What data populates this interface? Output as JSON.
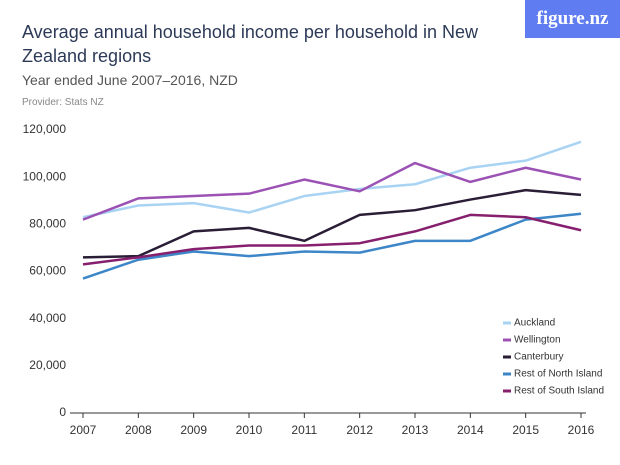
{
  "logo": "figure.nz",
  "chart_data": {
    "type": "line",
    "title": "Average annual household income per household in New Zealand regions",
    "subtitle": "Year ended June 2007–2016, NZD",
    "source": "Provider: Stats NZ",
    "categories": [
      "2007",
      "2008",
      "2009",
      "2010",
      "2011",
      "2012",
      "2013",
      "2014",
      "2015",
      "2016"
    ],
    "series": [
      {
        "name": "Auckland",
        "color": "#a9d3f3",
        "values": [
          83000,
          88000,
          89000,
          85000,
          92000,
          95000,
          97000,
          104000,
          107000,
          115000
        ]
      },
      {
        "name": "Wellington",
        "color": "#9b52b4",
        "values": [
          82000,
          91000,
          92000,
          93000,
          99000,
          94000,
          106000,
          98000,
          104000,
          99000
        ]
      },
      {
        "name": "Canterbury",
        "color": "#2a1d36",
        "values": [
          66000,
          66500,
          77000,
          78500,
          73000,
          84000,
          86000,
          90500,
          94500,
          92500
        ]
      },
      {
        "name": "Rest of North Island",
        "color": "#3d86c8",
        "values": [
          57000,
          65000,
          68500,
          66500,
          68500,
          68000,
          73000,
          73000,
          82000,
          84500
        ]
      },
      {
        "name": "Rest of South Island",
        "color": "#861f6e",
        "values": [
          63000,
          66000,
          69500,
          71000,
          71000,
          72000,
          77000,
          84000,
          83000,
          77500
        ]
      }
    ],
    "ylim": [
      0,
      120000
    ],
    "yticks": [
      0,
      {
        "value": 20000,
        "label": "20,000"
      },
      {
        "value": 40000,
        "label": "40,000"
      },
      {
        "value": 60000,
        "label": "60,000"
      },
      {
        "value": 80000,
        "label": "80,000"
      },
      {
        "value": 100000,
        "label": "100,000"
      },
      {
        "value": 120000,
        "label": "120,000"
      }
    ],
    "grid": false,
    "legend": "bottom-right"
  }
}
